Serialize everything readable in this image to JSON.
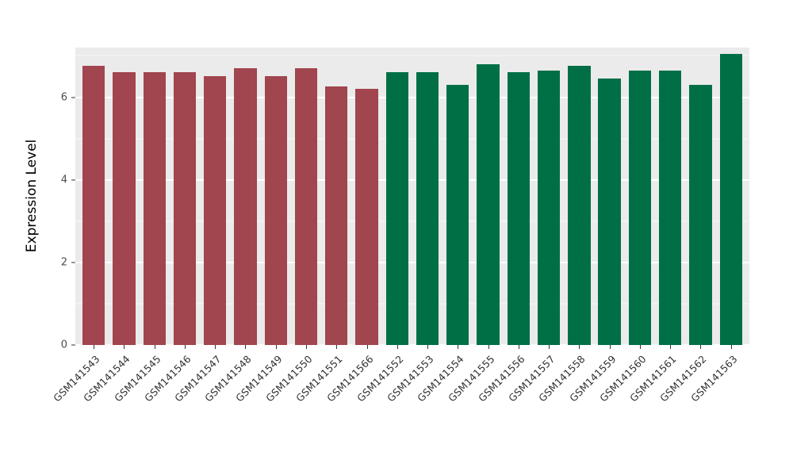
{
  "chart_data": {
    "type": "bar",
    "title": "",
    "xlabel": "",
    "ylabel": "Expression Level",
    "ylim": [
      0,
      7.2
    ],
    "yticks": [
      0,
      2,
      4,
      6
    ],
    "yminor": [
      1,
      3,
      5,
      7
    ],
    "grid": "on",
    "legend_position": "none",
    "panel_bg": "#EBEBEB",
    "categories": [
      "GSM141543",
      "GSM141544",
      "GSM141545",
      "GSM141546",
      "GSM141547",
      "GSM141548",
      "GSM141549",
      "GSM141550",
      "GSM141551",
      "GSM141566",
      "GSM141552",
      "GSM141553",
      "GSM141554",
      "GSM141555",
      "GSM141556",
      "GSM141557",
      "GSM141558",
      "GSM141559",
      "GSM141560",
      "GSM141561",
      "GSM141562",
      "GSM141563"
    ],
    "values": [
      6.75,
      6.6,
      6.6,
      6.6,
      6.5,
      6.7,
      6.5,
      6.7,
      6.25,
      6.2,
      6.6,
      6.6,
      6.3,
      6.8,
      6.6,
      6.65,
      6.75,
      6.45,
      6.65,
      6.65,
      6.3,
      7.05
    ],
    "groups": [
      "group1",
      "group1",
      "group1",
      "group1",
      "group1",
      "group1",
      "group1",
      "group1",
      "group1",
      "group1",
      "group2",
      "group2",
      "group2",
      "group2",
      "group2",
      "group2",
      "group2",
      "group2",
      "group2",
      "group2",
      "group2",
      "group2"
    ],
    "colors": {
      "group1": "#A1454F",
      "group2": "#006F46"
    }
  }
}
